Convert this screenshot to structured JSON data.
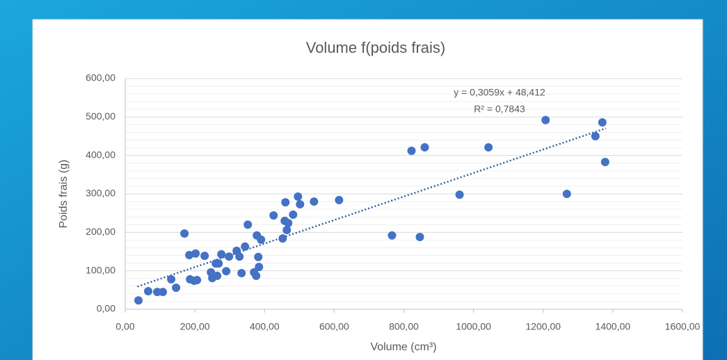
{
  "chart_data": {
    "type": "scatter",
    "title": "Volume f(poids frais)",
    "x_label": "Volume (cm³)",
    "y_label": "Poids frais (g)",
    "color": "#4472c4",
    "grid": true,
    "minor_grid": true,
    "xlim": [
      0,
      1600
    ],
    "xticks": [
      {
        "value": 0,
        "label": "0,00"
      },
      {
        "value": 200,
        "label": "200,00"
      },
      {
        "value": 400,
        "label": "400,00"
      },
      {
        "value": 600,
        "label": "600,00"
      },
      {
        "value": 800,
        "label": "800,00"
      },
      {
        "value": 1000,
        "label": "1000,00"
      },
      {
        "value": 1200,
        "label": "1200,00"
      },
      {
        "value": 1400,
        "label": "1400,00"
      },
      {
        "value": 1600,
        "label": "1600,00"
      }
    ],
    "ylim": [
      0,
      600
    ],
    "yticks": [
      {
        "value": 0,
        "label": "0,00"
      },
      {
        "value": 100,
        "label": "100,00"
      },
      {
        "value": 200,
        "label": "200,00"
      },
      {
        "value": 300,
        "label": "300,00"
      },
      {
        "value": 400,
        "label": "400,00"
      },
      {
        "value": 500,
        "label": "500,00"
      },
      {
        "value": 600,
        "label": "600,00"
      }
    ],
    "x": [
      38,
      66,
      92,
      108,
      132,
      146,
      170,
      184,
      186,
      198,
      202,
      206,
      228,
      246,
      250,
      260,
      264,
      268,
      276,
      290,
      298,
      320,
      328,
      334,
      344,
      352,
      370,
      376,
      378,
      382,
      384,
      390,
      426,
      452,
      460,
      458,
      464,
      468,
      482,
      496,
      502,
      542,
      614,
      766,
      822,
      846,
      860,
      960,
      1043,
      1207,
      1268,
      1350,
      1370,
      1378
    ],
    "values": [
      23,
      47,
      45,
      45,
      78,
      56,
      197,
      141,
      78,
      74,
      145,
      76,
      139,
      96,
      81,
      119,
      87,
      119,
      143,
      99,
      137,
      152,
      137,
      94,
      163,
      220,
      96,
      87,
      192,
      136,
      110,
      181,
      244,
      184,
      278,
      230,
      206,
      224,
      246,
      293,
      273,
      280,
      284,
      192,
      412,
      188,
      421,
      298,
      421,
      492,
      300,
      450,
      486,
      383
    ],
    "trendline": {
      "slope": 0.3059,
      "intercept": 48.412,
      "x_range": [
        35,
        1380
      ],
      "color": "#2e5f9e",
      "equation": "y = 0,3059x + 48,412",
      "r2": "R² = 0,7843"
    }
  }
}
